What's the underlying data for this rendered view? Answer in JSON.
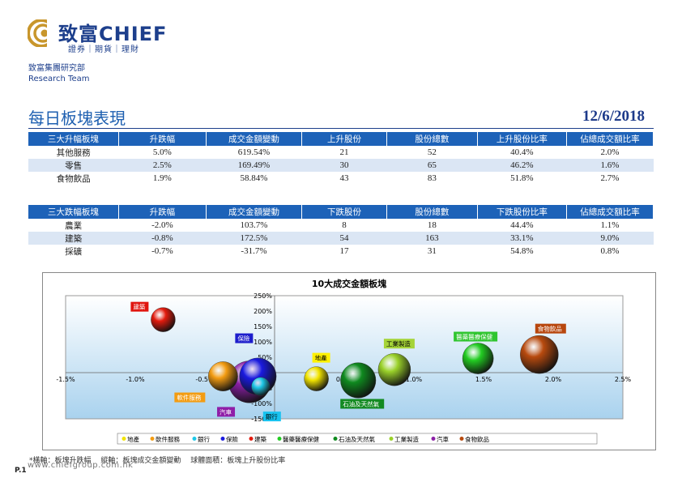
{
  "header": {
    "brand": "致富CHIEF",
    "brand_sub": "證券｜期貨｜理財",
    "dept_line1": "致富集團研究部",
    "dept_line2": "Research Team",
    "title": "每日板塊表現",
    "date": "12/6/2018"
  },
  "gainers": {
    "headers": [
      "三大升幅板塊",
      "升跌幅",
      "成交金額變動",
      "上升股份",
      "股份總數",
      "上升股份比率",
      "佔總成交額比率"
    ],
    "rows": [
      [
        "其他服務",
        "5.0%",
        "619.54%",
        "21",
        "52",
        "40.4%",
        "2.0%"
      ],
      [
        "零售",
        "2.5%",
        "169.49%",
        "30",
        "65",
        "46.2%",
        "1.6%"
      ],
      [
        "食物飲品",
        "1.9%",
        "58.84%",
        "43",
        "83",
        "51.8%",
        "2.7%"
      ]
    ]
  },
  "losers": {
    "headers": [
      "三大跌幅板塊",
      "升跌幅",
      "成交金額變動",
      "下跌股份",
      "股份總數",
      "下跌股份比率",
      "佔總成交額比率"
    ],
    "rows": [
      [
        "農業",
        "-2.0%",
        "103.7%",
        "8",
        "18",
        "44.4%",
        "1.1%"
      ],
      [
        "建築",
        "-0.8%",
        "172.5%",
        "54",
        "163",
        "33.1%",
        "9.0%"
      ],
      [
        "採礦",
        "-0.7%",
        "-31.7%",
        "17",
        "31",
        "54.8%",
        "0.8%"
      ]
    ]
  },
  "chart_data": {
    "type": "scatter",
    "title": "10大成交金額板塊",
    "xlim": [
      -1.5,
      2.5
    ],
    "ylim": [
      -150,
      250
    ],
    "x_ticks": [
      "-1.5%",
      "-1.0%",
      "-0.5%",
      "0.5%",
      "1.0%",
      "1.5%",
      "2.0%",
      "2.5%"
    ],
    "x_tick_values": [
      -1.5,
      -1.0,
      -0.5,
      0.5,
      1.0,
      1.5,
      2.0,
      2.5
    ],
    "y_ticks": [
      "250%",
      "200%",
      "150%",
      "100%",
      "50%",
      "0%",
      "-50%",
      "-100%",
      "-150%"
    ],
    "y_tick_values": [
      250,
      200,
      150,
      100,
      50,
      0,
      -50,
      -100,
      -150
    ],
    "series": [
      {
        "name": "地產",
        "x": 0.3,
        "y": -20,
        "size": 33,
        "color": "#f2e400",
        "label_color": "#fff100",
        "label_text": "#000"
      },
      {
        "name": "軟件服務",
        "x": -0.37,
        "y": -12,
        "size": 40,
        "color": "#f39c12",
        "label_color": "#f39c12",
        "label_text": "#fff"
      },
      {
        "name": "銀行",
        "x": -0.1,
        "y": -45,
        "size": 25,
        "color": "#1ec8e8",
        "label_color": "#18c3f0",
        "label_text": "#000"
      },
      {
        "name": "保險",
        "x": -0.12,
        "y": -12,
        "size": 50,
        "color": "#1a1adf",
        "label_color": "#1d1dcc",
        "label_text": "#fff"
      },
      {
        "name": "建築",
        "x": -0.8,
        "y": 172,
        "size": 33,
        "color": "#e31b0e",
        "label_color": "#e0140e",
        "label_text": "#fff"
      },
      {
        "name": "醫藥醫療保健",
        "x": 1.46,
        "y": 46,
        "size": 42,
        "color": "#22cc22",
        "label_color": "#2fc52f",
        "label_text": "#fff"
      },
      {
        "name": "石油及天然氣",
        "x": 0.6,
        "y": -25,
        "size": 48,
        "color": "#0f8a1f",
        "label_color": "#138a21",
        "label_text": "#fff"
      },
      {
        "name": "工業製造",
        "x": 0.86,
        "y": 10,
        "size": 44,
        "color": "#9ad12a",
        "label_color": "#a5d438",
        "label_text": "#000"
      },
      {
        "name": "汽車",
        "x": -0.18,
        "y": -30,
        "size": 57,
        "color": "#8b1fa6",
        "label_color": "#8f1ea8",
        "label_text": "#fff"
      },
      {
        "name": "食物飲品",
        "x": 1.9,
        "y": 58.84,
        "size": 51.8,
        "color": "#b84a0e",
        "label_color": "#b8470e",
        "label_text": "#fff"
      }
    ]
  },
  "footer": {
    "note": "*橫軸：板塊升跌幅　 縱軸：板塊成交金額變動　 球體面積：板塊上升股份比率",
    "url": "www.chiefgroup.com.hk",
    "page": "P.1"
  }
}
